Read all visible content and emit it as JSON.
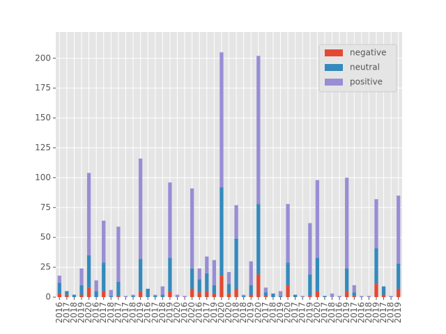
{
  "chart_data": {
    "type": "stacked_bar",
    "categories": [
      "2016",
      "2017",
      "2018",
      "2019",
      "2020",
      "2016",
      "2017",
      "2018",
      "2017",
      "2017",
      "2018",
      "2019",
      "2016",
      "2017",
      "2018",
      "2019",
      "2020",
      "2016",
      "2020",
      "2016",
      "2017",
      "2019",
      "2020",
      "2020",
      "2018",
      "2018",
      "2019",
      "2020",
      "2017",
      "2018",
      "2019",
      "2020",
      "2017",
      "2017",
      "2019",
      "2020",
      "2017",
      "2018",
      "2016",
      "2019",
      "2017",
      "2016",
      "2018",
      "2019",
      "2017",
      "2018",
      "2019"
    ],
    "series": [
      {
        "name": "negative",
        "color": "#E24A33",
        "values": [
          3,
          2,
          0,
          2,
          8,
          0,
          5,
          0,
          1,
          0,
          0,
          5,
          0,
          0,
          0,
          5,
          0,
          0,
          7,
          4,
          5,
          3,
          18,
          3,
          7,
          0,
          2,
          19,
          1,
          0,
          0,
          10,
          0,
          0,
          1,
          5,
          0,
          0,
          0,
          5,
          1,
          0,
          0,
          11,
          2,
          0,
          7
        ]
      },
      {
        "name": "neutral",
        "color": "#348ABD",
        "values": [
          9,
          3,
          2,
          8,
          27,
          5,
          24,
          1,
          12,
          0,
          1,
          27,
          7,
          1,
          2,
          28,
          0,
          0,
          17,
          11,
          15,
          7,
          74,
          8,
          42,
          1,
          8,
          59,
          3,
          3,
          1,
          19,
          2,
          0,
          18,
          28,
          1,
          0,
          0,
          19,
          3,
          0,
          0,
          30,
          7,
          0,
          21
        ]
      },
      {
        "name": "positive",
        "color": "#988ED5",
        "values": [
          6,
          0,
          0,
          14,
          69,
          9,
          35,
          5,
          46,
          1,
          1,
          84,
          0,
          1,
          7,
          63,
          2,
          1,
          67,
          9,
          14,
          21,
          113,
          10,
          28,
          1,
          20,
          124,
          4,
          0,
          4,
          49,
          0,
          1,
          43,
          65,
          0,
          3,
          1,
          76,
          6,
          1,
          1,
          41,
          0,
          1,
          57
        ]
      }
    ],
    "ylim": [
      0,
      222
    ],
    "yticks": [
      0,
      25,
      50,
      75,
      100,
      125,
      150,
      175,
      200
    ],
    "grid": true,
    "legend": "upper right"
  }
}
